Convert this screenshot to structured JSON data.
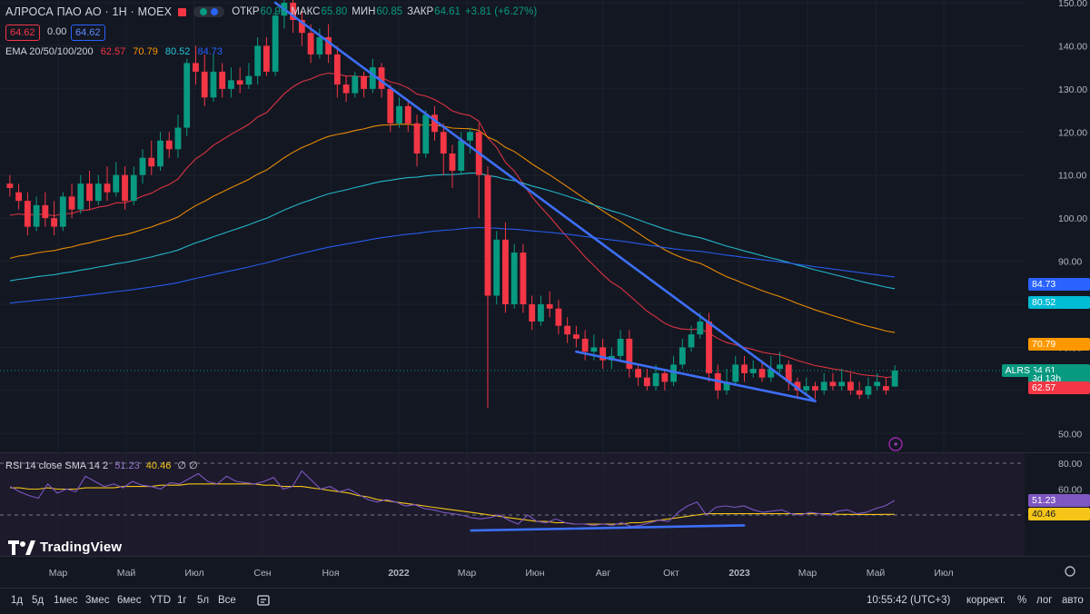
{
  "header": {
    "symbol": "АЛРОСА ПАО АО · 1Н · MOEX",
    "ohlc": [
      {
        "label": "ОТКР",
        "value": "60.90"
      },
      {
        "label": "МАКС",
        "value": "65.80"
      },
      {
        "label": "МИН",
        "value": "60.85"
      },
      {
        "label": "ЗАКР",
        "value": "64.61"
      }
    ],
    "change": "+3.81 (+6.27%)",
    "sell_price": "64.62",
    "spread": "0.00",
    "buy_price": "64.62"
  },
  "ema_legend": {
    "label": "EMA 20/50/100/200",
    "values": [
      "62.57",
      "70.79",
      "80.52",
      "84.73"
    ]
  },
  "rsi_legend": {
    "label": "RSI 14 close SMA 14 2",
    "rsi_value": "51.23",
    "sma_value": "40.46",
    "extra": "∅ ∅"
  },
  "logo_text": "TradingView",
  "colors": {
    "bg": "#131722",
    "up": "#089981",
    "down": "#f23645",
    "ema20": "#f23645",
    "ema50": "#ff9800",
    "ema100": "#26c6da",
    "ema200": "#2962ff",
    "trend": "#3d6ff7",
    "rsi": "#7e57c2",
    "rsi_sma": "#f5c518",
    "grid": "#1e222d",
    "text": "#d1d4dc"
  },
  "price_flags": [
    {
      "text": "84.73",
      "color": "#2962ff",
      "price": 84.73
    },
    {
      "text": "80.52",
      "color": "#00bcd4",
      "price": 80.52
    },
    {
      "text": "70.79",
      "color": "#ff9800",
      "price": 70.79
    },
    {
      "text": "64.61",
      "color": "#089981",
      "price": 64.61
    },
    {
      "text": "3d 13h",
      "color": "#089981",
      "price": 62.8
    },
    {
      "text": "62.57",
      "color": "#f23645",
      "price": 60.6
    }
  ],
  "ticker_flag": "ALRS",
  "rsi_flags": [
    {
      "text": "51.23",
      "color": "#7e57c2",
      "value": 51.23
    },
    {
      "text": "40.46",
      "color": "#f5c518",
      "value": 40.46
    }
  ],
  "toolbar": {
    "ranges": [
      "1д",
      "5д",
      "1мес",
      "3мес",
      "6мес",
      "YTD",
      "1г",
      "5л",
      "Все"
    ],
    "time": "10:55:42 (UTC+3)",
    "right": [
      "коррект.",
      "%",
      "лог",
      "авто"
    ]
  },
  "chart_data": [
    {
      "type": "candlestick",
      "title": "",
      "y_axis_ticks": [
        150,
        140,
        130,
        120,
        110,
        100,
        90,
        80,
        70,
        60,
        50
      ],
      "y_axis_labels": [
        "150.00",
        "140.00",
        "130.00",
        "120.00",
        "110.00",
        "100.00",
        "90.00",
        "80.00",
        "70.00",
        "60.00",
        "50.00"
      ],
      "ylim": [
        45,
        150
      ],
      "x_axis_labels": [
        "Мар",
        "Май",
        "Июл",
        "Сен",
        "Ноя",
        "2022",
        "Мар",
        "Июн",
        "Авг",
        "Окт",
        "2023",
        "Мар",
        "Май",
        "Июл"
      ],
      "candles": [
        [
          108,
          107,
          110,
          105
        ],
        [
          106,
          104,
          108,
          102
        ],
        [
          104,
          98,
          106,
          96
        ],
        [
          98,
          103,
          105,
          97
        ],
        [
          103,
          100,
          106,
          98
        ],
        [
          100,
          98,
          104,
          96
        ],
        [
          98,
          105,
          106,
          97
        ],
        [
          105,
          102,
          108,
          100
        ],
        [
          102,
          108,
          110,
          101
        ],
        [
          108,
          104,
          111,
          102
        ],
        [
          104,
          108,
          110,
          103
        ],
        [
          108,
          106,
          112,
          104
        ],
        [
          106,
          110,
          113,
          105
        ],
        [
          110,
          104,
          112,
          102
        ],
        [
          104,
          110,
          112,
          103
        ],
        [
          110,
          114,
          116,
          108
        ],
        [
          114,
          112,
          118,
          110
        ],
        [
          112,
          118,
          120,
          111
        ],
        [
          118,
          116,
          120,
          114
        ],
        [
          116,
          121,
          124,
          114
        ],
        [
          121,
          136,
          137,
          119
        ],
        [
          136,
          134,
          140,
          131
        ],
        [
          134,
          128,
          138,
          126
        ],
        [
          128,
          134,
          138,
          127
        ],
        [
          134,
          130,
          136,
          128
        ],
        [
          130,
          132,
          135,
          128
        ],
        [
          132,
          131,
          135,
          129
        ],
        [
          131,
          133,
          136,
          130
        ],
        [
          133,
          140,
          142,
          131
        ],
        [
          140,
          134,
          142,
          133
        ],
        [
          134,
          147,
          148,
          133
        ],
        [
          147,
          150,
          152,
          144
        ],
        [
          150,
          146,
          152,
          143
        ],
        [
          146,
          143,
          148,
          140
        ],
        [
          143,
          138,
          145,
          136
        ],
        [
          138,
          142,
          144,
          137
        ],
        [
          142,
          138,
          145,
          136
        ],
        [
          138,
          131,
          140,
          128
        ],
        [
          131,
          129,
          133,
          127
        ],
        [
          129,
          133,
          134,
          128
        ],
        [
          133,
          130,
          134,
          128
        ],
        [
          130,
          135,
          137,
          129
        ],
        [
          135,
          130,
          136,
          128
        ],
        [
          130,
          122,
          131,
          120
        ],
        [
          122,
          126,
          128,
          121
        ],
        [
          126,
          122,
          127,
          120
        ],
        [
          122,
          115,
          124,
          112
        ],
        [
          115,
          124,
          125,
          114
        ],
        [
          124,
          120,
          126,
          118
        ],
        [
          120,
          115,
          122,
          110
        ],
        [
          115,
          111,
          117,
          107
        ],
        [
          111,
          118,
          120,
          110
        ],
        [
          118,
          120,
          121,
          115
        ],
        [
          120,
          110,
          122,
          100
        ],
        [
          110,
          82,
          112,
          56
        ],
        [
          82,
          95,
          97,
          80
        ],
        [
          95,
          80,
          99,
          78
        ],
        [
          80,
          92,
          94,
          79
        ],
        [
          92,
          80,
          94,
          78
        ],
        [
          80,
          76,
          82,
          74
        ],
        [
          76,
          80,
          82,
          75
        ],
        [
          80,
          79,
          83,
          77
        ],
        [
          79,
          75,
          81,
          73
        ],
        [
          75,
          73,
          77,
          71
        ],
        [
          73,
          72,
          75,
          70
        ],
        [
          72,
          69,
          74,
          67
        ],
        [
          69,
          70,
          73,
          67
        ],
        [
          70,
          67,
          72,
          65
        ],
        [
          67,
          68,
          70,
          65
        ],
        [
          68,
          72,
          74,
          67
        ],
        [
          72,
          65,
          74,
          63
        ],
        [
          65,
          63,
          66,
          61
        ],
        [
          63,
          61,
          65,
          60
        ],
        [
          61,
          64,
          66,
          60
        ],
        [
          64,
          62,
          65,
          60
        ],
        [
          62,
          66,
          68,
          61
        ],
        [
          66,
          70,
          72,
          65
        ],
        [
          70,
          73,
          75,
          69
        ],
        [
          73,
          76,
          78,
          72
        ],
        [
          76,
          64,
          78,
          62
        ],
        [
          64,
          60,
          66,
          58
        ],
        [
          60,
          62,
          65,
          59
        ],
        [
          62,
          66,
          68,
          61
        ],
        [
          66,
          64,
          68,
          62
        ],
        [
          64,
          65,
          67,
          63
        ],
        [
          65,
          63,
          67,
          62
        ],
        [
          63,
          65,
          68,
          62
        ],
        [
          65,
          66,
          69,
          64
        ],
        [
          66,
          62,
          67,
          60
        ],
        [
          62,
          60,
          63,
          58
        ],
        [
          60,
          61,
          63,
          59
        ],
        [
          61,
          60,
          62,
          58
        ],
        [
          60,
          62,
          64,
          59
        ],
        [
          62,
          61,
          64,
          60
        ],
        [
          61,
          62,
          65,
          60
        ],
        [
          62,
          60,
          64,
          59
        ],
        [
          60,
          59,
          62,
          58
        ],
        [
          59,
          61,
          63,
          58
        ],
        [
          61,
          62,
          64,
          60
        ],
        [
          61,
          60,
          63,
          59
        ],
        [
          60.9,
          64.61,
          65.8,
          60.85
        ]
      ],
      "overlays": [
        "EMA 20",
        "EMA 50",
        "EMA 100",
        "EMA 200"
      ]
    },
    {
      "type": "line",
      "title": "",
      "y_axis_ticks": [
        80,
        60,
        40
      ],
      "y_axis_labels": [
        "80.00",
        "60.00",
        "40.00"
      ],
      "ylim": [
        30,
        80
      ],
      "series": [
        {
          "name": "RSI 14",
          "values": [
            62,
            58,
            55,
            53,
            64,
            57,
            60,
            58,
            70,
            66,
            62,
            64,
            61,
            66,
            63,
            62,
            60,
            65,
            64,
            68,
            72,
            66,
            64,
            70,
            66,
            65,
            64,
            66,
            69,
            60,
            62,
            74,
            67,
            60,
            62,
            58,
            60,
            56,
            52,
            50,
            52,
            50,
            47,
            48,
            45,
            44,
            42,
            41,
            40,
            38,
            37,
            38,
            40,
            36,
            33,
            40,
            35,
            34,
            37,
            34,
            33,
            33,
            32,
            33,
            32,
            34,
            31,
            32,
            34,
            36,
            35,
            42,
            47,
            50,
            40,
            46,
            47,
            46,
            47,
            44,
            42,
            43,
            44,
            41,
            40,
            42,
            41,
            40,
            43,
            44,
            41,
            42,
            45,
            47,
            51.23
          ]
        },
        {
          "name": "SMA 14",
          "values": [
            61,
            61,
            60,
            60,
            61,
            60,
            60,
            60,
            61,
            61,
            61,
            61,
            62,
            62,
            62,
            62,
            63,
            63,
            63,
            64,
            64,
            64,
            64,
            64,
            64,
            64,
            64,
            63,
            63,
            62,
            62,
            62,
            61,
            60,
            59,
            58,
            57,
            55,
            54,
            52,
            51,
            50,
            49,
            48,
            47,
            46,
            45,
            44,
            43,
            42,
            41,
            40,
            39,
            38,
            37,
            36,
            35,
            35,
            34,
            34,
            33,
            33,
            33,
            33,
            33,
            33,
            34,
            34,
            35,
            36,
            37,
            38,
            39,
            40,
            41,
            41,
            41,
            41,
            41,
            41,
            41,
            41,
            41,
            41,
            41,
            41,
            41,
            41,
            40.5,
            40.5,
            40.4,
            40.4,
            40.4,
            40.46,
            40.46
          ]
        }
      ]
    }
  ]
}
